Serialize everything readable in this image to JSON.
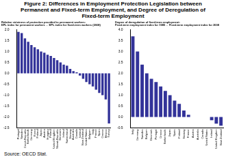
{
  "title": "Figure 2: Differences in Employment Protection Legislation between Permanent and Fixed-term Employment, and Degree of Deregulation of Fixed-term Employment",
  "source": "Source: OECD Stat.",
  "chart_data": [
    {
      "type": "bar",
      "title": [
        "Relative strictness of protection provided to permanent workers:",
        "EPL index for permanent workers  -  EPL index for fixed-term workers (2008)"
      ],
      "categories": [
        "Portugal",
        "Sweden",
        "Czech Republic",
        "Netherlands",
        "Germany",
        "Korea",
        "Finland",
        "Japan",
        "Austria",
        "Hungary",
        "Poland",
        "United Kingdom",
        "Slovak Republic",
        "Denmark",
        "Ireland",
        "Switzerland",
        "Norway",
        "Australia",
        "Canada",
        "Iceland",
        "New Zealand",
        "United States",
        "Belgium",
        "Italy",
        "France",
        "Spain",
        "Greece",
        "Mexico",
        "Turkey"
      ],
      "values": [
        1.9,
        1.85,
        1.6,
        1.45,
        1.3,
        1.2,
        1.1,
        1.0,
        0.95,
        0.85,
        0.8,
        0.7,
        0.6,
        0.5,
        0.4,
        0.35,
        0.2,
        0.1,
        0.05,
        -0.1,
        -0.25,
        -0.4,
        -0.5,
        -0.6,
        -0.75,
        -0.9,
        -1.0,
        -1.2,
        -2.3
      ],
      "color": "#333399",
      "ylim": [
        -2.5,
        2.0
      ],
      "yticks": [
        {
          "value": 2,
          "label": "2.0"
        },
        1.5,
        {
          "value": 1,
          "label": "1.0"
        },
        0.5,
        {
          "value": 0,
          "label": "0.0"
        },
        -0.5,
        {
          "value": -1,
          "label": "-1.0"
        },
        -1.5,
        {
          "value": -2,
          "label": "-2.0"
        },
        -2.5
      ],
      "grid": false
    },
    {
      "type": "bar",
      "title": [
        "Degree of deregulation of fixed-term employment:",
        "Fixed-term employment index for 1985  -  Fixed-term employment index for 2008"
      ],
      "categories": [
        "Italy",
        "Germany",
        "Sweden",
        "Belgium",
        "Denmark",
        "Portugal",
        "Greece",
        "Netherlands",
        "Japan",
        "Spain",
        "Finland",
        "Norway",
        "France",
        "Austria",
        "Australia",
        "Canada",
        "United States",
        "Ireland",
        "United Kingdom",
        "New Zealand"
      ],
      "values": [
        3.7,
        3.0,
        2.4,
        2.0,
        1.75,
        1.6,
        1.4,
        1.2,
        1.0,
        0.75,
        0.6,
        0.3,
        0.1,
        0.0,
        0.0,
        0.0,
        0.0,
        -0.15,
        -0.3,
        -0.4
      ],
      "color": "#333399",
      "ylim": [
        -0.5,
        4.0
      ],
      "yticks": [
        {
          "value": 4,
          "label": "4.0"
        },
        3.5,
        {
          "value": 3,
          "label": "3.0"
        },
        2.5,
        {
          "value": 2,
          "label": "2.0"
        },
        1.5,
        {
          "value": 1,
          "label": "1.0"
        },
        0.5,
        {
          "value": 0,
          "label": "0.0"
        },
        -0.5
      ],
      "grid": false
    }
  ]
}
